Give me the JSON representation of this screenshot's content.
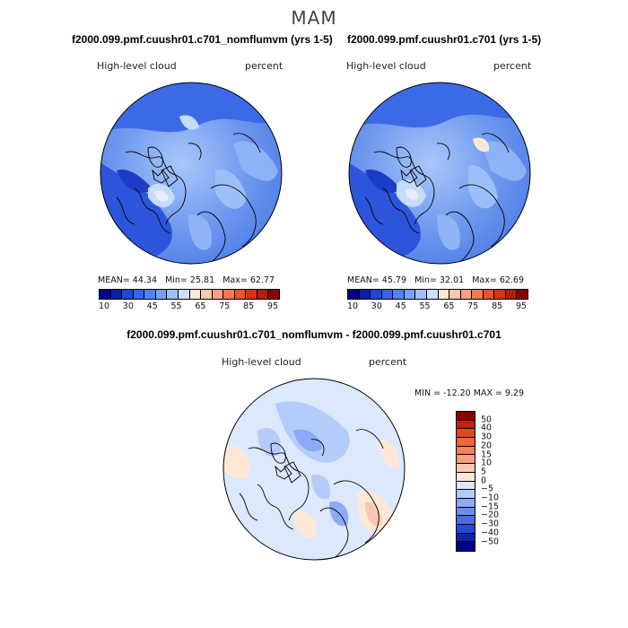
{
  "season": "MAM",
  "panels": {
    "left": {
      "title": "f2000.099.pmf.cuushr01.c701_nomflumvm (yrs 1-5)",
      "variable": "High-level cloud",
      "units": "percent",
      "mean_label": "MEAN=",
      "mean": "44.34",
      "min_label": "Min=",
      "min": "25.81",
      "max_label": "Max=",
      "max": "62.77"
    },
    "right": {
      "title": "f2000.099.pmf.cuushr01.c701 (yrs 1-5)",
      "variable": "High-level cloud",
      "units": "percent",
      "mean_label": "MEAN=",
      "mean": "45.79",
      "min_label": "Min=",
      "min": "32.01",
      "max_label": "Max=",
      "max": "62.69"
    },
    "diff": {
      "title": "f2000.099.pmf.cuushr01.c701_nomflumvm - f2000.099.pmf.cuushr01.c701",
      "variable": "High-level cloud",
      "units": "percent",
      "minmax": "MIN = -12.20  MAX =    9.29"
    }
  },
  "colorbar_abs": {
    "colors": [
      "#00008c",
      "#0a1fb4",
      "#1e46dc",
      "#3264f0",
      "#5082f5",
      "#78a0fa",
      "#a0c0fc",
      "#cce0fe",
      "#fbe8d8",
      "#fac8b0",
      "#f8a082",
      "#f67850",
      "#f0502d",
      "#dc3214",
      "#b41e0a",
      "#8c0000"
    ],
    "tick_labels": [
      "10",
      "30",
      "45",
      "55",
      "65",
      "75",
      "85",
      "95"
    ]
  },
  "colorbar_diff": {
    "colors": [
      "#8c0000",
      "#c81e0a",
      "#e6461e",
      "#f56432",
      "#f8825a",
      "#f8a082",
      "#fac8b0",
      "#fde8d8",
      "#dce8fc",
      "#b4ccfa",
      "#8caaf5",
      "#6e8cf0",
      "#4b69eb",
      "#2846dc",
      "#0f23b4",
      "#000087"
    ],
    "tick_labels": [
      "50",
      "40",
      "30",
      "20",
      "15",
      "10",
      "5",
      "0",
      "−5",
      "−10",
      "−15",
      "−20",
      "−30",
      "−40",
      "−50"
    ]
  },
  "legend_icons": [
    "polar-map-icon"
  ]
}
